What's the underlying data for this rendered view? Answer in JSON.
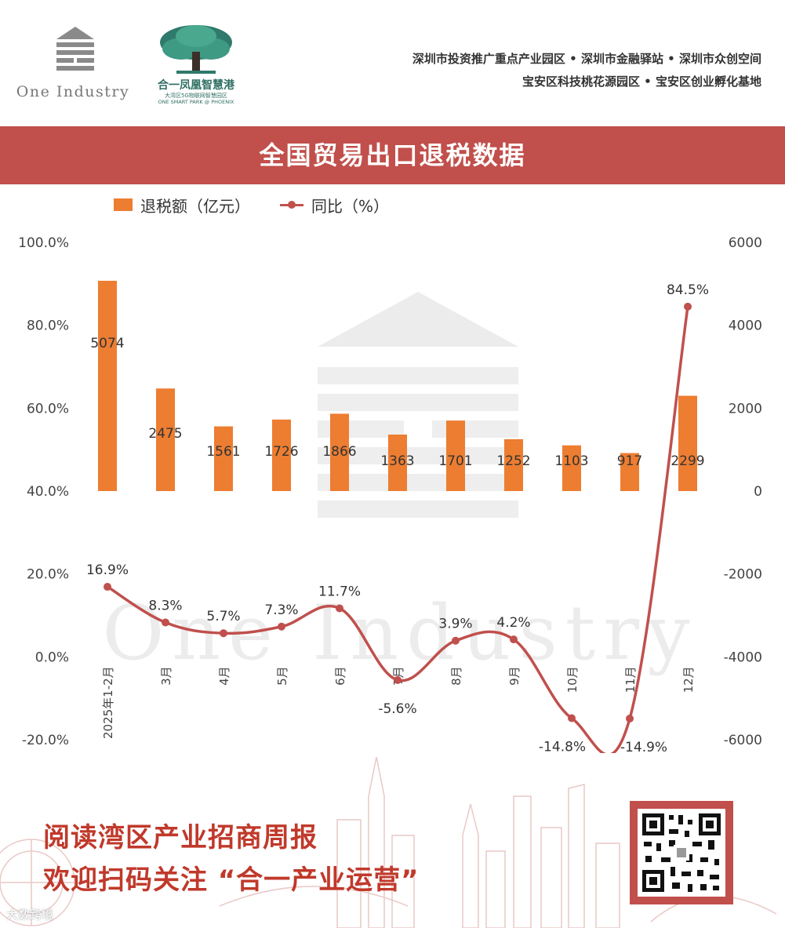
{
  "header": {
    "logo_left_name": "One Industry",
    "logo_right_name_cn": "合一凤凰智慧港",
    "logo_right_sub1": "大湾区5G物联网智慧园区",
    "logo_right_sub2": "ONE SMART PARK @ PHOENIX",
    "tagline_line1": "深圳市投资推广重点产业园区 • 深圳市金融驿站 • 深圳市众创空间",
    "tagline_line2": "宝安区科技桃花源园区 • 宝安区创业孵化基地"
  },
  "banner": {
    "title": "全国贸易出口退税数据",
    "color": "#c14f4b"
  },
  "watermark": {
    "text": "One Industry"
  },
  "chart_data": {
    "type": "bar",
    "categories": [
      "2025年1-2月",
      "3月",
      "4月",
      "5月",
      "6月",
      "7月",
      "8月",
      "9月",
      "10月",
      "11月",
      "12月"
    ],
    "series": [
      {
        "name": "退税额（亿元）",
        "type": "bar",
        "axis": "right",
        "color": "#ed7d31",
        "values": [
          5074,
          2475,
          1561,
          1726,
          1866,
          1363,
          1701,
          1252,
          1103,
          917,
          2299
        ]
      },
      {
        "name": "同比（%）",
        "type": "line",
        "axis": "left",
        "color": "#c0504d",
        "values": [
          16.9,
          8.3,
          5.7,
          7.3,
          11.7,
          -5.6,
          3.9,
          4.2,
          -14.8,
          -14.9,
          84.5
        ]
      }
    ],
    "left_axis": {
      "min": -20,
      "max": 100,
      "ticks": [
        "-20.0%",
        "0.0%",
        "20.0%",
        "40.0%",
        "60.0%",
        "80.0%",
        "100.0%"
      ]
    },
    "right_axis": {
      "min": -6000,
      "max": 6000,
      "ticks": [
        "-6000",
        "-4000",
        "-2000",
        "0",
        "2000",
        "4000",
        "6000"
      ]
    },
    "bar_labels": [
      "5074",
      "2475",
      "1561",
      "1726",
      "1866",
      "1363",
      "1701",
      "1252",
      "1103",
      "917",
      "2299"
    ],
    "line_labels": [
      "16.9%",
      "8.3%",
      "5.7%",
      "7.3%",
      "11.7%",
      "-5.6%",
      "3.9%",
      "4.2%",
      "-14.8%",
      "-14.9%",
      "84.5%"
    ],
    "legend_position": "top",
    "grid": false
  },
  "footer": {
    "line1": "阅读湾区产业招商周报",
    "line2": "欢迎扫码关注 “合一产业运营”",
    "qr_caption": "One Industry",
    "credit": "大数跨境"
  }
}
